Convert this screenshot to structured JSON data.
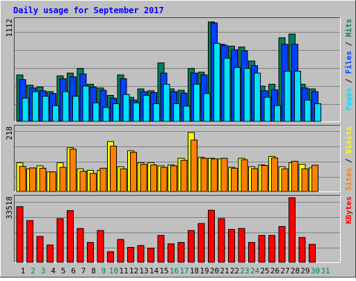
{
  "title": "Daily usage for September 2017",
  "colors": {
    "background": "#C0C0C0",
    "border_light": "#ffffff",
    "border_dark": "#404040",
    "title_text": "#0000FF",
    "hits": "#00805C",
    "files": "#0040FF",
    "pages": "#00E0FF",
    "visits": "#FFFF00",
    "sites": "#FF8000",
    "kbytes": "#FF0000",
    "weekday_label": "#000000",
    "weekend_label": "#00805C"
  },
  "chart_data": [
    {
      "type": "bar",
      "name": "hits-files-pages",
      "ytick": "1112",
      "ymax": 1112,
      "legend": [
        "Pages",
        "Files",
        "Hits"
      ],
      "series": [
        {
          "name": "Hits",
          "color_key": "hits",
          "values": [
            500,
            390,
            370,
            320,
            490,
            520,
            570,
            400,
            360,
            280,
            500,
            260,
            350,
            330,
            630,
            350,
            335,
            570,
            530,
            1070,
            830,
            810,
            800,
            650,
            380,
            400,
            900,
            940,
            400,
            350
          ]
        },
        {
          "name": "Files",
          "color_key": "files",
          "values": [
            450,
            360,
            330,
            300,
            460,
            480,
            510,
            370,
            335,
            250,
            460,
            230,
            320,
            310,
            520,
            320,
            305,
            520,
            500,
            1060,
            820,
            770,
            760,
            600,
            330,
            340,
            830,
            830,
            360,
            320
          ]
        },
        {
          "name": "Pages",
          "color_key": "pages",
          "values": [
            250,
            320,
            270,
            170,
            320,
            270,
            380,
            200,
            150,
            190,
            290,
            200,
            280,
            190,
            400,
            190,
            165,
            400,
            300,
            840,
            680,
            580,
            570,
            520,
            260,
            170,
            540,
            540,
            230,
            190
          ]
        }
      ]
    },
    {
      "type": "bar",
      "name": "visits-sites",
      "ytick": "218",
      "ymax": 218,
      "legend": [
        "Sites",
        "Visits"
      ],
      "series": [
        {
          "name": "Visits",
          "color_key": "visits",
          "values": [
            95,
            75,
            85,
            65,
            95,
            145,
            75,
            70,
            70,
            165,
            82,
            135,
            95,
            95,
            85,
            88,
            110,
            195,
            113,
            110,
            108,
            80,
            110,
            82,
            88,
            116,
            82,
            95,
            90,
            78
          ]
        },
        {
          "name": "Sites",
          "color_key": "sites",
          "values": [
            83,
            78,
            77,
            65,
            80,
            140,
            67,
            60,
            77,
            150,
            75,
            130,
            90,
            88,
            80,
            85,
            103,
            170,
            110,
            108,
            110,
            77,
            105,
            76,
            86,
            111,
            75,
            100,
            75,
            87
          ]
        }
      ]
    },
    {
      "type": "bar",
      "name": "kbytes",
      "ytick": "33518",
      "ymax": 33518,
      "legend": [
        "KBytes"
      ],
      "series": [
        {
          "name": "KBytes",
          "color_key": "kbytes",
          "values": [
            28000,
            21000,
            13000,
            8700,
            22000,
            26000,
            17000,
            10000,
            16000,
            5300,
            11500,
            7500,
            8400,
            7100,
            13500,
            9300,
            10000,
            16000,
            19500,
            26200,
            22000,
            16500,
            17000,
            10000,
            13500,
            13500,
            18000,
            32500,
            12500,
            9000
          ]
        }
      ]
    }
  ],
  "x_labels": [
    {
      "text": "1",
      "weekend": false
    },
    {
      "text": "2",
      "weekend": true
    },
    {
      "text": "3",
      "weekend": true
    },
    {
      "text": "4",
      "weekend": false
    },
    {
      "text": "5",
      "weekend": false
    },
    {
      "text": "6",
      "weekend": false
    },
    {
      "text": "7",
      "weekend": false
    },
    {
      "text": "8",
      "weekend": false
    },
    {
      "text": "9",
      "weekend": true
    },
    {
      "text": "10",
      "weekend": true
    },
    {
      "text": "11",
      "weekend": false
    },
    {
      "text": "12",
      "weekend": false
    },
    {
      "text": "13",
      "weekend": false
    },
    {
      "text": "14",
      "weekend": false
    },
    {
      "text": "15",
      "weekend": false
    },
    {
      "text": "16",
      "weekend": true
    },
    {
      "text": "17",
      "weekend": true
    },
    {
      "text": "18",
      "weekend": false
    },
    {
      "text": "19",
      "weekend": false
    },
    {
      "text": "20",
      "weekend": false
    },
    {
      "text": "21",
      "weekend": false
    },
    {
      "text": "22",
      "weekend": false
    },
    {
      "text": "23",
      "weekend": true
    },
    {
      "text": "24",
      "weekend": true
    },
    {
      "text": "25",
      "weekend": false
    },
    {
      "text": "26",
      "weekend": false
    },
    {
      "text": "27",
      "weekend": false
    },
    {
      "text": "28",
      "weekend": false
    },
    {
      "text": "29",
      "weekend": false
    },
    {
      "text": "30",
      "weekend": true
    },
    {
      "text": "31",
      "weekend": true
    }
  ]
}
